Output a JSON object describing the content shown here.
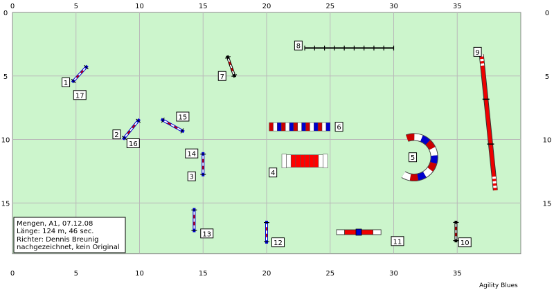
{
  "course": {
    "width": 40,
    "height": 19,
    "x_ticks": [
      "0",
      "5",
      "10",
      "15",
      "20",
      "25",
      "30",
      "35"
    ],
    "y_ticks": [
      "0",
      "5",
      "10",
      "15"
    ],
    "field_color": "#ccf5cc",
    "grid_color": "#b9b9b9"
  },
  "info_box": {
    "lines": [
      "Mengen, A1, 07.12.08",
      "Länge: 124 m, 46 sec.",
      "Richter: Dennis Breunig",
      "nachgezeichnet, kein Original"
    ]
  },
  "brand": "Agility Blues",
  "obstacles": [
    {
      "type": "hurdle",
      "name": "jump-1-17",
      "from": [
        4.7,
        5.5
      ],
      "to": [
        5.9,
        4.2
      ],
      "color": "#0000cc"
    },
    {
      "type": "hurdle",
      "name": "jump-2-16",
      "from": [
        8.7,
        10.0
      ],
      "to": [
        10.0,
        8.4
      ],
      "color": "#0000cc"
    },
    {
      "type": "hurdle",
      "name": "jump-3-14",
      "from": [
        15.0,
        11.0
      ],
      "to": [
        15.0,
        12.9
      ],
      "color": "#0000cc"
    },
    {
      "type": "hurdle",
      "name": "jump-7",
      "from": [
        16.9,
        3.4
      ],
      "to": [
        17.5,
        5.1
      ],
      "color": "#000000"
    },
    {
      "type": "hurdle",
      "name": "jump-10",
      "from": [
        34.9,
        16.4
      ],
      "to": [
        34.9,
        18.1
      ],
      "color": "#000000"
    },
    {
      "type": "hurdle",
      "name": "jump-12",
      "from": [
        20.0,
        16.4
      ],
      "to": [
        20.0,
        18.2
      ],
      "color": "#0000cc"
    },
    {
      "type": "hurdle",
      "name": "jump-13",
      "from": [
        14.3,
        15.4
      ],
      "to": [
        14.3,
        17.3
      ],
      "color": "#0000cc"
    },
    {
      "type": "hurdle",
      "name": "jump-15",
      "from": [
        11.7,
        8.4
      ],
      "to": [
        13.5,
        9.4
      ],
      "color": "#0000cc"
    },
    {
      "type": "tire-bar",
      "name": "obstacle-6",
      "from": [
        20.2,
        9.0
      ],
      "to": [
        25.0,
        9.0
      ]
    },
    {
      "type": "tunnel",
      "name": "tunnel-4",
      "from": [
        21.2,
        11.7
      ],
      "to": [
        24.8,
        11.7
      ]
    },
    {
      "type": "curved-tunnel",
      "name": "tunnel-5",
      "center": [
        31.6,
        11.4
      ],
      "radius": 1.6
    },
    {
      "type": "dog-walk",
      "name": "dogwalk-9",
      "from": [
        36.9,
        3.3
      ],
      "to": [
        38.0,
        14.0
      ]
    },
    {
      "type": "seesaw",
      "name": "seesaw-11",
      "from": [
        25.5,
        17.3
      ],
      "to": [
        29.0,
        17.3
      ]
    },
    {
      "type": "wall",
      "name": "wall-8",
      "from": [
        23.0,
        2.8
      ],
      "to": [
        30.0,
        2.8
      ]
    }
  ],
  "labels": [
    {
      "text": "1",
      "at": [
        4.2,
        5.5
      ]
    },
    {
      "text": "17",
      "at": [
        5.3,
        6.5
      ]
    },
    {
      "text": "2",
      "at": [
        8.2,
        9.6
      ]
    },
    {
      "text": "16",
      "at": [
        9.5,
        10.3
      ]
    },
    {
      "text": "3",
      "at": [
        14.1,
        12.9
      ]
    },
    {
      "text": "14",
      "at": [
        14.1,
        11.1
      ]
    },
    {
      "text": "15",
      "at": [
        13.4,
        8.2
      ]
    },
    {
      "text": "7",
      "at": [
        16.5,
        5.0
      ]
    },
    {
      "text": "8",
      "at": [
        22.5,
        2.6
      ]
    },
    {
      "text": "6",
      "at": [
        25.7,
        9.0
      ]
    },
    {
      "text": "4",
      "at": [
        20.5,
        12.6
      ]
    },
    {
      "text": "5",
      "at": [
        31.5,
        11.4
      ]
    },
    {
      "text": "9",
      "at": [
        36.6,
        3.1
      ]
    },
    {
      "text": "10",
      "at": [
        35.6,
        18.1
      ]
    },
    {
      "text": "11",
      "at": [
        30.3,
        18.0
      ]
    },
    {
      "text": "12",
      "at": [
        20.9,
        18.1
      ]
    },
    {
      "text": "13",
      "at": [
        15.3,
        17.4
      ]
    }
  ]
}
